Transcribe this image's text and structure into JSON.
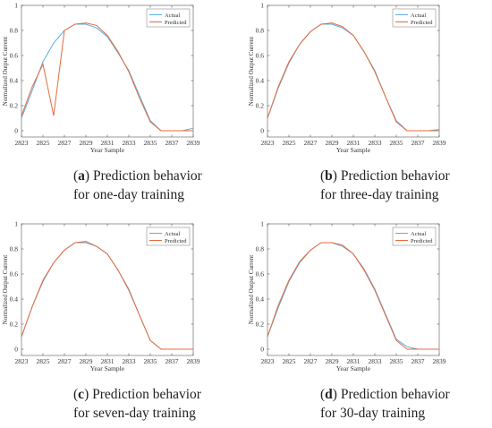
{
  "panels": [
    {
      "tag": "a",
      "caption": [
        "Prediction behavior",
        "for one-day training"
      ],
      "chart_data": {
        "type": "line",
        "xlabel": "Year Sample",
        "ylabel": "Normalized Output Current",
        "xlim": [
          2823,
          2839
        ],
        "ylim": [
          -0.05,
          1.0
        ],
        "xticks": [
          2823,
          2825,
          2827,
          2829,
          2831,
          2833,
          2835,
          2837,
          2839
        ],
        "yticks": [
          0,
          0.2,
          0.4,
          0.6,
          0.8,
          1
        ],
        "legend": "top-right",
        "series": [
          {
            "name": "Actual",
            "color": "#5aaee0",
            "x": [
              2823,
              2824,
              2825,
              2826,
              2827,
              2828,
              2829,
              2830,
              2831,
              2832,
              2833,
              2834,
              2835,
              2836,
              2837,
              2838,
              2839
            ],
            "y": [
              0.1,
              0.32,
              0.55,
              0.7,
              0.8,
              0.85,
              0.85,
              0.82,
              0.75,
              0.62,
              0.48,
              0.28,
              0.08,
              0.0,
              0.0,
              0.0,
              0.02
            ]
          },
          {
            "name": "Predicted",
            "color": "#e86a3a",
            "x": [
              2823,
              2824,
              2825,
              2826,
              2827,
              2828,
              2829,
              2830,
              2831,
              2832,
              2833,
              2834,
              2835,
              2836,
              2837,
              2838,
              2839
            ],
            "y": [
              0.12,
              0.35,
              0.53,
              0.12,
              0.8,
              0.85,
              0.86,
              0.84,
              0.76,
              0.63,
              0.47,
              0.26,
              0.07,
              0.0,
              0.0,
              0.0,
              0.0
            ]
          }
        ]
      }
    },
    {
      "tag": "b",
      "caption": [
        "Prediction behavior",
        "for three-day training"
      ],
      "chart_data": {
        "type": "line",
        "xlabel": "Year Sample",
        "ylabel": "Normalized Output Current",
        "xlim": [
          2823,
          2839
        ],
        "ylim": [
          -0.05,
          1.0
        ],
        "xticks": [
          2823,
          2825,
          2827,
          2829,
          2831,
          2833,
          2835,
          2837,
          2839
        ],
        "yticks": [
          0,
          0.2,
          0.4,
          0.6,
          0.8,
          1
        ],
        "legend": "top-right",
        "series": [
          {
            "name": "Actual",
            "color": "#5aaee0",
            "x": [
              2823,
              2824,
              2825,
              2826,
              2827,
              2828,
              2829,
              2830,
              2831,
              2832,
              2833,
              2834,
              2835,
              2836,
              2837,
              2838,
              2839
            ],
            "y": [
              0.1,
              0.34,
              0.54,
              0.69,
              0.79,
              0.85,
              0.85,
              0.82,
              0.76,
              0.63,
              0.48,
              0.27,
              0.08,
              0.0,
              0.0,
              0.0,
              0.01
            ]
          },
          {
            "name": "Predicted",
            "color": "#e86a3a",
            "x": [
              2823,
              2824,
              2825,
              2826,
              2827,
              2828,
              2829,
              2830,
              2831,
              2832,
              2833,
              2834,
              2835,
              2836,
              2837,
              2838,
              2839
            ],
            "y": [
              0.1,
              0.35,
              0.55,
              0.69,
              0.79,
              0.85,
              0.86,
              0.83,
              0.76,
              0.63,
              0.47,
              0.27,
              0.07,
              0.0,
              0.0,
              0.0,
              0.0
            ]
          }
        ]
      }
    },
    {
      "tag": "c",
      "caption": [
        "Prediction behavior",
        "for seven-day training"
      ],
      "chart_data": {
        "type": "line",
        "xlabel": "Year Sample",
        "ylabel": "Normalized Output Current",
        "xlim": [
          2823,
          2839
        ],
        "ylim": [
          -0.05,
          1.0
        ],
        "xticks": [
          2823,
          2825,
          2827,
          2829,
          2831,
          2833,
          2835,
          2837,
          2839
        ],
        "yticks": [
          0,
          0.2,
          0.4,
          0.6,
          0.8,
          1
        ],
        "legend": "top-right",
        "series": [
          {
            "name": "Actual",
            "color": "#5aaee0",
            "x": [
              2823,
              2824,
              2825,
              2826,
              2827,
              2828,
              2829,
              2830,
              2831,
              2832,
              2833,
              2834,
              2835,
              2836,
              2837,
              2838,
              2839
            ],
            "y": [
              0.1,
              0.34,
              0.54,
              0.69,
              0.79,
              0.85,
              0.85,
              0.82,
              0.76,
              0.63,
              0.48,
              0.27,
              0.07,
              0.0,
              0.0,
              0.0,
              0.0
            ]
          },
          {
            "name": "Predicted",
            "color": "#e86a3a",
            "x": [
              2823,
              2824,
              2825,
              2826,
              2827,
              2828,
              2829,
              2830,
              2831,
              2832,
              2833,
              2834,
              2835,
              2836,
              2837,
              2838,
              2839
            ],
            "y": [
              0.1,
              0.34,
              0.55,
              0.69,
              0.79,
              0.85,
              0.86,
              0.82,
              0.76,
              0.63,
              0.47,
              0.27,
              0.07,
              0.0,
              0.0,
              0.0,
              0.0
            ]
          }
        ]
      }
    },
    {
      "tag": "d",
      "caption": [
        "Prediction behavior",
        "for 30-day training"
      ],
      "chart_data": {
        "type": "line",
        "xlabel": "Year Sample",
        "ylabel": "Normalized Output Current",
        "xlim": [
          2823,
          2839
        ],
        "ylim": [
          -0.05,
          1.0
        ],
        "xticks": [
          2823,
          2825,
          2827,
          2829,
          2831,
          2833,
          2835,
          2837,
          2839
        ],
        "yticks": [
          0,
          0.2,
          0.4,
          0.6,
          0.8,
          1
        ],
        "legend": "top-right",
        "series": [
          {
            "name": "Actual",
            "color": "#5aaee0",
            "x": [
              2823,
              2824,
              2825,
              2826,
              2827,
              2828,
              2829,
              2830,
              2831,
              2832,
              2833,
              2834,
              2835,
              2836,
              2837,
              2838,
              2839
            ],
            "y": [
              0.1,
              0.33,
              0.54,
              0.69,
              0.79,
              0.85,
              0.85,
              0.82,
              0.76,
              0.64,
              0.48,
              0.28,
              0.08,
              0.02,
              0.0,
              0.0,
              0.0
            ]
          },
          {
            "name": "Predicted",
            "color": "#e86a3a",
            "x": [
              2823,
              2824,
              2825,
              2826,
              2827,
              2828,
              2829,
              2830,
              2831,
              2832,
              2833,
              2834,
              2835,
              2836,
              2837,
              2838,
              2839
            ],
            "y": [
              0.1,
              0.35,
              0.55,
              0.7,
              0.79,
              0.85,
              0.85,
              0.83,
              0.76,
              0.63,
              0.47,
              0.27,
              0.07,
              0.0,
              0.0,
              0.0,
              0.0
            ]
          }
        ]
      }
    }
  ]
}
